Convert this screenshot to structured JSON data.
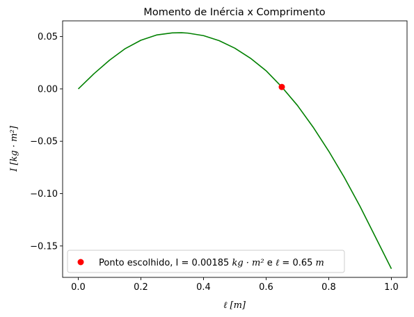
{
  "chart_data": {
    "type": "line",
    "title": "Momento de Inércia x Comprimento",
    "xlabel": "ℓ [m]",
    "ylabel": "I [kg · m²]",
    "xlim": [
      -0.05,
      1.05
    ],
    "ylim": [
      -0.18,
      0.065
    ],
    "xticks": [
      0.0,
      0.2,
      0.4,
      0.6,
      0.8,
      1.0
    ],
    "xtick_labels": [
      "0.0",
      "0.2",
      "0.4",
      "0.6",
      "0.8",
      "1.0"
    ],
    "yticks": [
      0.05,
      0.0,
      -0.05,
      -0.1,
      -0.15
    ],
    "ytick_labels": [
      "0.05",
      "0.00",
      "−0.05",
      "−0.10",
      "−0.15"
    ],
    "grid": false,
    "series": [
      {
        "color": "#008000",
        "x": [
          0.0,
          0.05,
          0.1,
          0.15,
          0.2,
          0.25,
          0.3,
          0.33,
          0.35,
          0.4,
          0.45,
          0.5,
          0.55,
          0.6,
          0.65,
          0.7,
          0.75,
          0.8,
          0.85,
          0.9,
          0.95,
          1.0
        ],
        "y": [
          0.0,
          0.0145,
          0.0275,
          0.0385,
          0.0465,
          0.0515,
          0.0535,
          0.0537,
          0.0533,
          0.0509,
          0.0461,
          0.0389,
          0.0293,
          0.0173,
          0.00185,
          -0.0158,
          -0.0365,
          -0.0595,
          -0.0847,
          -0.1123,
          -0.142,
          -0.1718
        ]
      }
    ],
    "point": {
      "x": 0.65,
      "y": 0.00185,
      "color": "#ff0000"
    },
    "legend": {
      "placement": "lower-left",
      "prefix": "Ponto escolhido, I = 0.00185 ",
      "unit1": "kg · m²",
      "mid": " e ",
      "ell": "ℓ",
      "suffix": " = 0.65 ",
      "unit2": "m"
    }
  }
}
